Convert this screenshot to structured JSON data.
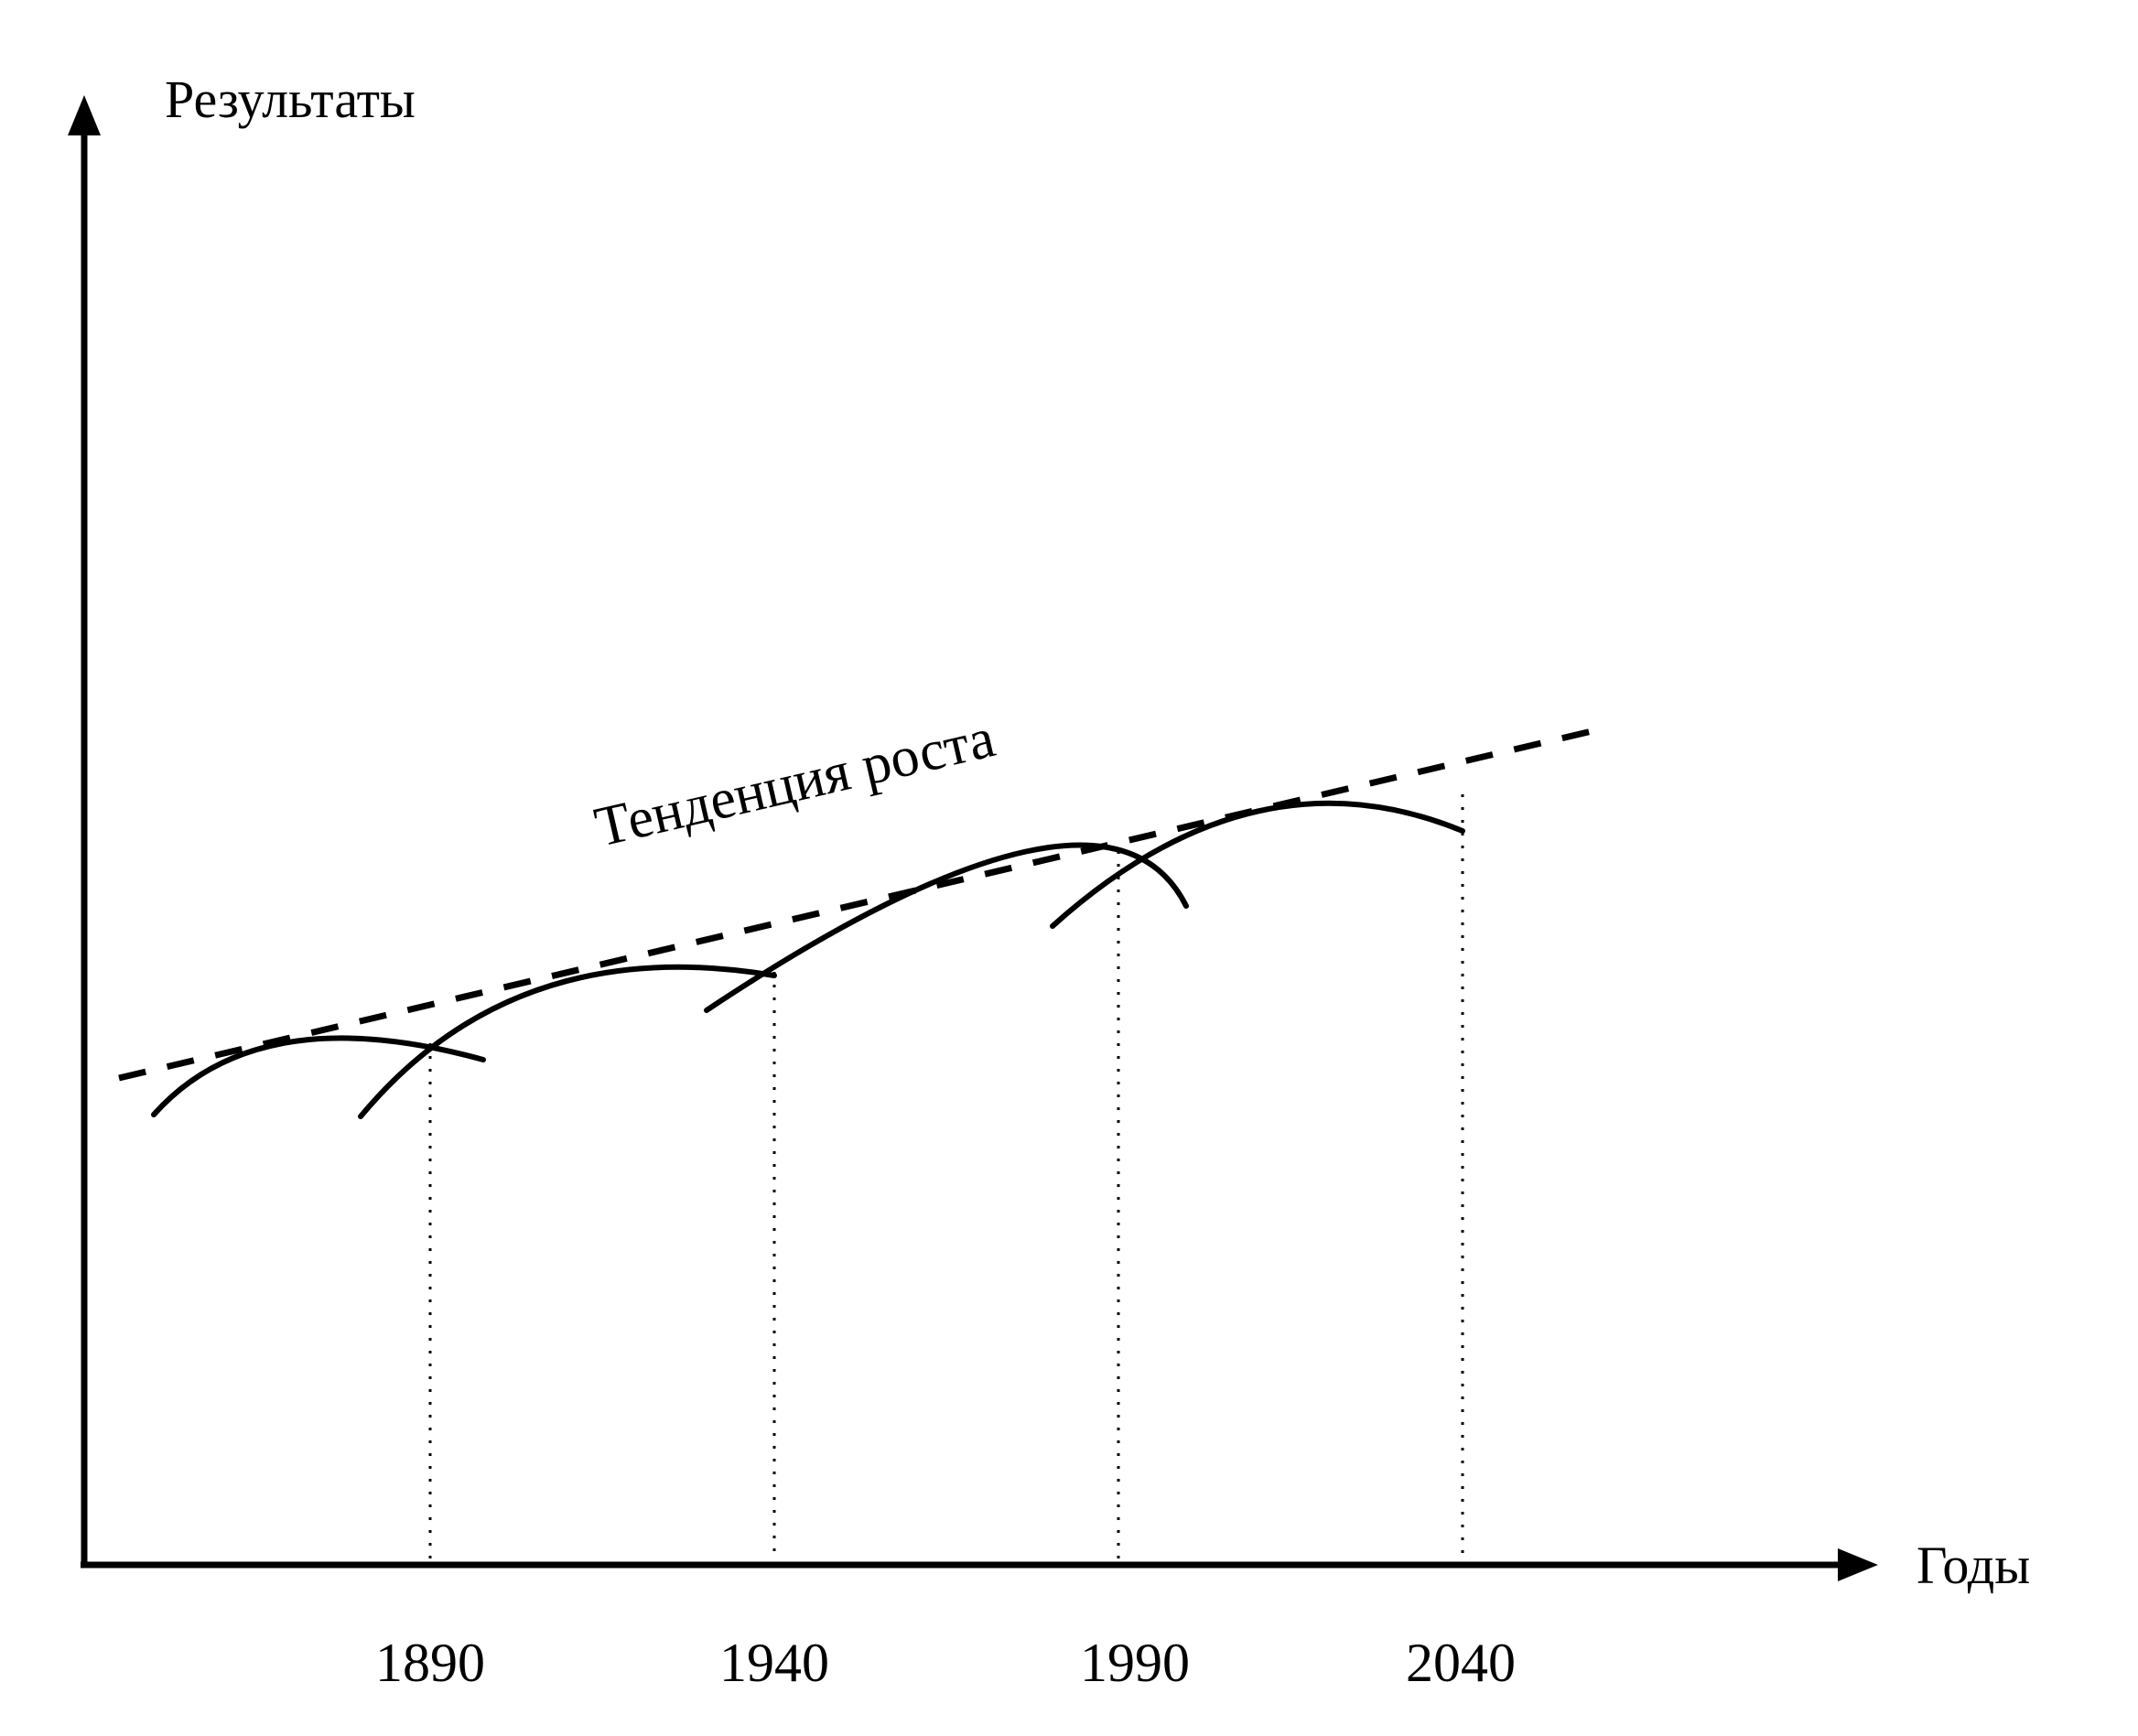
{
  "y_axis_label": "Результаты",
  "x_axis_label": "Годы",
  "trend_label": "Тенденция роста",
  "x_ticks": [
    "1890",
    "1940",
    "1990",
    "2040"
  ],
  "colors": {
    "line": "#000000",
    "background": "#ffffff"
  }
}
